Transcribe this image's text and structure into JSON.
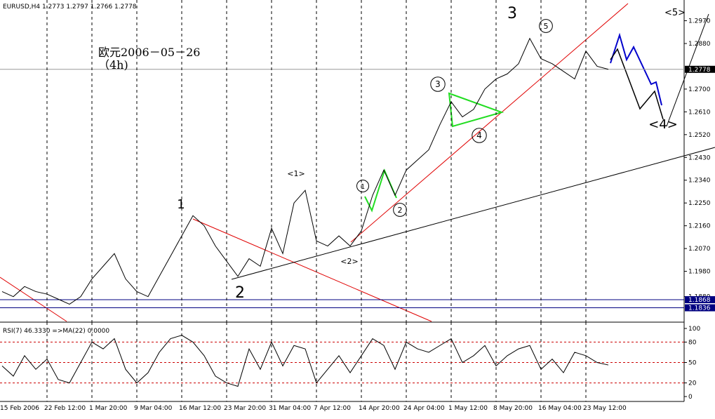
{
  "chart_data": [
    {
      "type": "line",
      "title": "EURUSD,H4 1.2773 1.2797 1.2766 1.2778",
      "color": "#000000",
      "categories": [
        "15 Feb 2006",
        null,
        null,
        null,
        "22 Feb 12:00",
        null,
        null,
        null,
        "1 Mar 20:00",
        null,
        null,
        null,
        "9 Mar 04:00",
        null,
        null,
        null,
        "16 Mar 12:00",
        null,
        null,
        null,
        "23 Mar 20:00",
        null,
        null,
        null,
        "31 Mar 04:00",
        null,
        null,
        null,
        "7 Apr 12:00",
        null,
        null,
        null,
        "14 Apr 20:00",
        null,
        null,
        null,
        "24 Apr 04:00",
        null,
        null,
        null,
        "1 May 12:00",
        null,
        null,
        null,
        "8 May 20:00",
        null,
        null,
        null,
        "16 May 04:00",
        null,
        null,
        null,
        "23 May 12:00",
        null,
        null
      ],
      "values": [
        1.19,
        1.188,
        1.192,
        1.19,
        1.189,
        1.187,
        1.185,
        1.188,
        1.195,
        1.2,
        1.205,
        1.195,
        1.19,
        1.188,
        1.196,
        1.204,
        1.212,
        1.22,
        1.216,
        1.208,
        1.202,
        1.196,
        1.203,
        1.2,
        1.215,
        1.205,
        1.225,
        1.23,
        1.21,
        1.208,
        1.212,
        1.208,
        1.214,
        1.228,
        1.238,
        1.228,
        1.238,
        1.242,
        1.246,
        1.256,
        1.265,
        1.259,
        1.262,
        1.27,
        1.274,
        1.276,
        1.28,
        1.29,
        1.282,
        1.28,
        1.277,
        1.274,
        1.285,
        1.279,
        1.2778
      ],
      "ylim": [
        1.1782,
        1.3038
      ],
      "yticks": [
        {
          "value": 1.297,
          "label": "1.2970"
        },
        {
          "value": 1.288,
          "label": "1.2880"
        },
        {
          "value": 1.27,
          "label": "1.2700"
        },
        {
          "value": 1.261,
          "label": "1.2610"
        },
        {
          "value": 1.252,
          "label": "1.2520"
        },
        {
          "value": 1.243,
          "label": "1.2430"
        },
        {
          "value": 1.234,
          "label": "1.2340"
        },
        {
          "value": 1.225,
          "label": "1.2250"
        },
        {
          "value": 1.216,
          "label": "1.2160"
        },
        {
          "value": 1.207,
          "label": "1.2070"
        },
        {
          "value": 1.198,
          "label": "1.1980"
        },
        {
          "value": 1.188,
          "label": "1.1880"
        }
      ],
      "last_price": 1.2778,
      "levels": [
        1.1868,
        1.1836
      ],
      "level_color": "#000080",
      "note": "欧元2006－05－26\n（4h)",
      "annotations": [
        "3",
        "<5>",
        "5",
        "3",
        "4",
        "1",
        "2",
        "<1>",
        "<2>",
        "<4>",
        "1",
        "2"
      ]
    },
    {
      "type": "line",
      "title": "RSI(7) 46.3330 =>MA(22) 0.0000",
      "color": "#000000",
      "values": [
        45,
        30,
        60,
        40,
        55,
        25,
        20,
        50,
        80,
        70,
        85,
        40,
        20,
        35,
        65,
        85,
        90,
        80,
        60,
        30,
        20,
        15,
        70,
        40,
        80,
        45,
        75,
        70,
        20,
        40,
        60,
        35,
        60,
        85,
        75,
        40,
        80,
        70,
        65,
        75,
        85,
        50,
        60,
        75,
        45,
        60,
        70,
        75,
        40,
        55,
        35,
        65,
        60,
        50,
        46.333
      ],
      "ylim": [
        0,
        100
      ],
      "yticks": [
        100,
        80,
        50,
        20,
        0
      ],
      "levels": [
        80,
        50,
        20
      ],
      "level_color": "#cc0000"
    }
  ]
}
